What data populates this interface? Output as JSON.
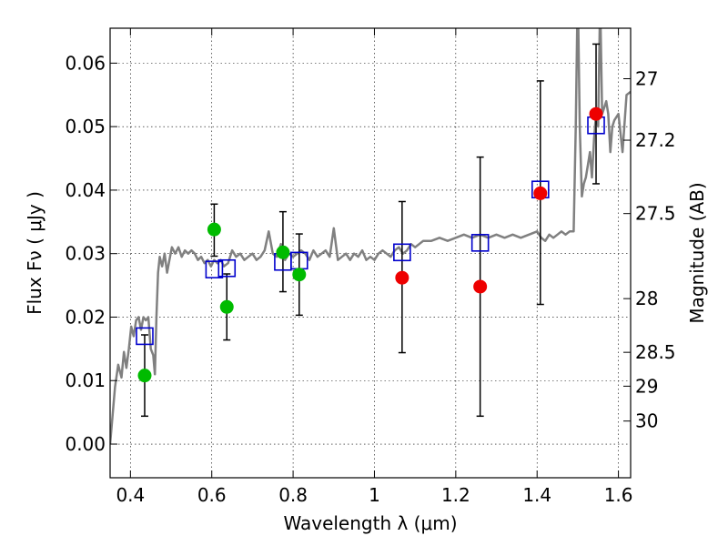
{
  "chart_data": {
    "type": "scatter",
    "title": "",
    "xlabel": "Wavelength  λ (μm)",
    "ylabel": "Flux  Fν  ( μJy )",
    "ylabel_right": "Magnitude (AB)",
    "xlim": [
      0.35,
      1.63
    ],
    "ylim": [
      -0.0053,
      0.0655
    ],
    "grid": true,
    "xticks": [
      {
        "value": 0.4,
        "label": "0.4"
      },
      {
        "value": 0.6,
        "label": "0.6"
      },
      {
        "value": 0.8,
        "label": "0.8"
      },
      {
        "value": 1.0,
        "label": "1"
      },
      {
        "value": 1.2,
        "label": "1.2"
      },
      {
        "value": 1.4,
        "label": "1.4"
      },
      {
        "value": 1.6,
        "label": "1.6"
      }
    ],
    "yticks": [
      {
        "value": 0.0,
        "label": "0.00"
      },
      {
        "value": 0.01,
        "label": "0.01"
      },
      {
        "value": 0.02,
        "label": "0.02"
      },
      {
        "value": 0.03,
        "label": "0.03"
      },
      {
        "value": 0.04,
        "label": "0.04"
      },
      {
        "value": 0.05,
        "label": "0.05"
      },
      {
        "value": 0.06,
        "label": "0.06"
      }
    ],
    "mag_ticks": [
      {
        "value": 27,
        "label": "27"
      },
      {
        "value": 27.2,
        "label": "27.2"
      },
      {
        "value": 27.5,
        "label": "27.5"
      },
      {
        "value": 28,
        "label": "28"
      },
      {
        "value": 28.5,
        "label": "28.5"
      },
      {
        "value": 29,
        "label": "29"
      },
      {
        "value": 30,
        "label": "30"
      }
    ],
    "colors": {
      "model": "#808080",
      "green": "#00bb00",
      "red": "#ee0000",
      "square": "#0000cc",
      "errorbar": "#000000"
    },
    "series": [
      {
        "name": "model spectrum",
        "kind": "line",
        "x": [
          0.35,
          0.362,
          0.37,
          0.378,
          0.384,
          0.39,
          0.396,
          0.402,
          0.408,
          0.414,
          0.42,
          0.426,
          0.432,
          0.438,
          0.444,
          0.45,
          0.456,
          0.46,
          0.464,
          0.468,
          0.472,
          0.478,
          0.484,
          0.49,
          0.496,
          0.502,
          0.51,
          0.518,
          0.526,
          0.534,
          0.542,
          0.55,
          0.558,
          0.566,
          0.574,
          0.582,
          0.59,
          0.598,
          0.606,
          0.614,
          0.622,
          0.63,
          0.64,
          0.65,
          0.66,
          0.67,
          0.68,
          0.69,
          0.7,
          0.71,
          0.72,
          0.73,
          0.74,
          0.75,
          0.76,
          0.77,
          0.78,
          0.79,
          0.8,
          0.81,
          0.82,
          0.83,
          0.84,
          0.85,
          0.86,
          0.87,
          0.88,
          0.89,
          0.9,
          0.91,
          0.92,
          0.93,
          0.94,
          0.95,
          0.96,
          0.97,
          0.98,
          0.99,
          1.0,
          1.01,
          1.02,
          1.03,
          1.04,
          1.05,
          1.06,
          1.07,
          1.08,
          1.09,
          1.1,
          1.12,
          1.14,
          1.16,
          1.18,
          1.2,
          1.22,
          1.24,
          1.26,
          1.28,
          1.3,
          1.32,
          1.34,
          1.36,
          1.38,
          1.4,
          1.41,
          1.42,
          1.43,
          1.44,
          1.45,
          1.46,
          1.47,
          1.48,
          1.49,
          1.495,
          1.5,
          1.505,
          1.51,
          1.515,
          1.52,
          1.525,
          1.53,
          1.535,
          1.54,
          1.545,
          1.55,
          1.555,
          1.56,
          1.565,
          1.57,
          1.575,
          1.58,
          1.585,
          1.59,
          1.6,
          1.61,
          1.62,
          1.63
        ],
        "y": [
          0.0,
          0.009,
          0.0125,
          0.0105,
          0.0145,
          0.012,
          0.015,
          0.0185,
          0.017,
          0.0195,
          0.02,
          0.018,
          0.02,
          0.0195,
          0.02,
          0.015,
          0.014,
          0.011,
          0.02,
          0.027,
          0.0295,
          0.028,
          0.03,
          0.027,
          0.029,
          0.031,
          0.03,
          0.031,
          0.0295,
          0.0305,
          0.03,
          0.0305,
          0.03,
          0.029,
          0.0295,
          0.0285,
          0.029,
          0.028,
          0.029,
          0.0285,
          0.029,
          0.028,
          0.0285,
          0.0305,
          0.0295,
          0.03,
          0.029,
          0.0295,
          0.03,
          0.029,
          0.0295,
          0.0305,
          0.0335,
          0.03,
          0.0295,
          0.0315,
          0.029,
          0.03,
          0.0295,
          0.03,
          0.0305,
          0.03,
          0.029,
          0.0305,
          0.0295,
          0.03,
          0.0305,
          0.0295,
          0.034,
          0.029,
          0.0295,
          0.03,
          0.029,
          0.03,
          0.0295,
          0.0305,
          0.029,
          0.0295,
          0.029,
          0.03,
          0.0305,
          0.03,
          0.0295,
          0.0305,
          0.031,
          0.03,
          0.0305,
          0.0315,
          0.031,
          0.032,
          0.032,
          0.0325,
          0.032,
          0.0325,
          0.033,
          0.0325,
          0.033,
          0.0325,
          0.033,
          0.0325,
          0.033,
          0.0325,
          0.033,
          0.0335,
          0.0325,
          0.032,
          0.033,
          0.0325,
          0.033,
          0.0335,
          0.033,
          0.0335,
          0.0335,
          0.05,
          0.072,
          0.05,
          0.039,
          0.041,
          0.042,
          0.044,
          0.046,
          0.042,
          0.048,
          0.052,
          0.05,
          0.07,
          0.052,
          0.053,
          0.054,
          0.052,
          0.046,
          0.05,
          0.051,
          0.052,
          0.046,
          0.055,
          0.0555
        ]
      },
      {
        "name": "green points",
        "kind": "points",
        "points": [
          {
            "x": 0.435,
            "y": 0.0108,
            "err_low": 0.0044,
            "err_high": 0.0172
          },
          {
            "x": 0.606,
            "y": 0.0338,
            "err_low": 0.0296,
            "err_high": 0.0378
          },
          {
            "x": 0.637,
            "y": 0.0216,
            "err_low": 0.0164,
            "err_high": 0.0268
          },
          {
            "x": 0.775,
            "y": 0.0302,
            "err_low": 0.024,
            "err_high": 0.0366
          },
          {
            "x": 0.815,
            "y": 0.0267,
            "err_low": 0.0203,
            "err_high": 0.0331
          }
        ]
      },
      {
        "name": "red points",
        "kind": "points",
        "points": [
          {
            "x": 1.068,
            "y": 0.0262,
            "err_low": 0.0144,
            "err_high": 0.0382
          },
          {
            "x": 1.26,
            "y": 0.0248,
            "err_low": 0.0044,
            "err_high": 0.0452
          },
          {
            "x": 1.408,
            "y": 0.0395,
            "err_low": 0.022,
            "err_high": 0.0572
          },
          {
            "x": 1.545,
            "y": 0.052,
            "err_low": 0.041,
            "err_high": 0.063
          }
        ]
      },
      {
        "name": "model band fluxes",
        "kind": "squares",
        "points": [
          {
            "x": 0.435,
            "y": 0.017
          },
          {
            "x": 0.606,
            "y": 0.0275
          },
          {
            "x": 0.637,
            "y": 0.0277
          },
          {
            "x": 0.775,
            "y": 0.0287
          },
          {
            "x": 0.815,
            "y": 0.0289
          },
          {
            "x": 1.068,
            "y": 0.0302
          },
          {
            "x": 1.26,
            "y": 0.0317
          },
          {
            "x": 1.408,
            "y": 0.0401
          },
          {
            "x": 1.545,
            "y": 0.0502
          }
        ]
      }
    ]
  }
}
